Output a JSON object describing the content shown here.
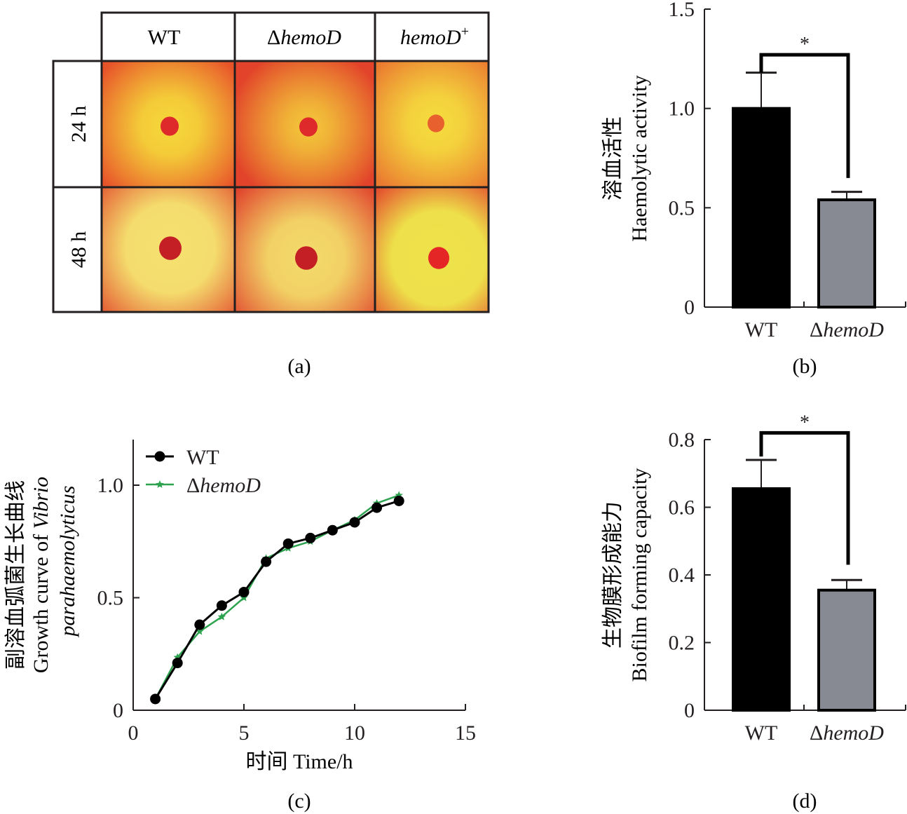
{
  "figure": {
    "panel_labels": [
      "(a)",
      "(b)",
      "(c)",
      "(d)"
    ]
  },
  "panel_a": {
    "column_headers": [
      {
        "text": "WT",
        "italic": false,
        "prefix": "",
        "sup": ""
      },
      {
        "text": "hemoD",
        "italic": true,
        "prefix": "Δ",
        "sup": ""
      },
      {
        "text": "hemoD",
        "italic": true,
        "prefix": "",
        "sup": "+"
      }
    ],
    "row_headers": [
      "24 h",
      "48 h"
    ],
    "plates": [
      {
        "row": "24 h",
        "strain": "WT",
        "background": "#e8542a",
        "halo": "#f5d93a",
        "spot": "#de2a2a",
        "halo_strength": 0.55
      },
      {
        "row": "24 h",
        "strain": "ΔhemoD",
        "background": "#e2432a",
        "halo": "#f3c83a",
        "spot": "#de2a2a",
        "halo_strength": 0.35
      },
      {
        "row": "24 h",
        "strain": "hemoD+",
        "background": "#ea7a30",
        "halo": "#f5dc3e",
        "spot": "#e7602e",
        "halo_strength": 0.55
      },
      {
        "row": "48 h",
        "strain": "WT",
        "background": "#e24a2c",
        "halo": "#f5e270",
        "spot": "#c41f24",
        "halo_strength": 0.85
      },
      {
        "row": "48 h",
        "strain": "ΔhemoD",
        "background": "#e0402b",
        "halo": "#f3dc6a",
        "spot": "#c41f24",
        "halo_strength": 0.7
      },
      {
        "row": "48 h",
        "strain": "hemoD+",
        "background": "#e23a2a",
        "halo": "#eee24a",
        "spot": "#e52626",
        "halo_strength": 0.95
      }
    ]
  },
  "chart_data": [
    {
      "id": "b",
      "type": "bar",
      "title": "",
      "ylabel_cn": "溶血活性",
      "ylabel": "Haemolytic activity",
      "xlabel": "",
      "categories": [
        "WT",
        "ΔhemoD"
      ],
      "category_italic": [
        false,
        true
      ],
      "values": [
        1.0,
        0.54
      ],
      "error_upper": [
        1.18,
        0.58
      ],
      "bar_colors": [
        "#000000",
        "#878a93"
      ],
      "ylim": [
        0,
        1.5
      ],
      "yticks": [
        0,
        0.5,
        1.0,
        1.5
      ],
      "ytick_labels": [
        "0",
        "0.5",
        "1.0",
        "1.5"
      ],
      "significance": {
        "label": "*",
        "between": [
          "WT",
          "ΔhemoD"
        ],
        "bracket_y": 1.27,
        "left_drop_to": 1.18,
        "right_drop_to": 0.65
      },
      "grid": false
    },
    {
      "id": "c",
      "type": "line",
      "title": "",
      "ylabel_cn": "副溶血弧菌生长曲线",
      "ylabel": "Growth curve of",
      "ylabel_italic_1": "Vibrio",
      "ylabel_italic_2": "parahaemolyticus",
      "xlabel": "时间 Time/h",
      "x": [
        1,
        2,
        3,
        4,
        5,
        6,
        7,
        8,
        9,
        10,
        11,
        12
      ],
      "series": [
        {
          "name": "WT",
          "italic": false,
          "prefix": "",
          "marker": "circle",
          "color": "#000000",
          "values": [
            0.05,
            0.21,
            0.38,
            0.465,
            0.525,
            0.66,
            0.74,
            0.765,
            0.8,
            0.835,
            0.9,
            0.93
          ]
        },
        {
          "name": "hemoD",
          "italic": true,
          "prefix": "Δ",
          "marker": "star",
          "color": "#2ea34f",
          "values": [
            0.05,
            0.235,
            0.35,
            0.415,
            0.5,
            0.675,
            0.72,
            0.75,
            0.8,
            0.845,
            0.92,
            0.955
          ]
        }
      ],
      "xlim": [
        0,
        15
      ],
      "ylim": [
        0,
        1.2
      ],
      "xticks": [
        0,
        5,
        10,
        15
      ],
      "xtick_labels": [
        "0",
        "5",
        "10",
        "15"
      ],
      "yticks": [
        0,
        0.5,
        1.0
      ],
      "ytick_labels": [
        "0",
        "0.5",
        "1.0"
      ],
      "legend": "top-left",
      "grid": false
    },
    {
      "id": "d",
      "type": "bar",
      "title": "",
      "ylabel_cn": "生物膜形成能力",
      "ylabel": "Biofilm forming capacity",
      "xlabel": "",
      "categories": [
        "WT",
        "ΔhemoD"
      ],
      "category_italic": [
        false,
        true
      ],
      "values": [
        0.655,
        0.355
      ],
      "error_upper": [
        0.74,
        0.385
      ],
      "bar_colors": [
        "#000000",
        "#878a93"
      ],
      "ylim": [
        0,
        0.8
      ],
      "yticks": [
        0,
        0.2,
        0.4,
        0.6,
        0.8
      ],
      "ytick_labels": [
        "0",
        "0.2",
        "0.4",
        "0.6",
        "0.8"
      ],
      "significance": {
        "label": "*",
        "between": [
          "WT",
          "ΔhemoD"
        ],
        "bracket_y": 0.82,
        "left_drop_to": 0.75,
        "right_drop_to": 0.43
      },
      "grid": false
    }
  ]
}
